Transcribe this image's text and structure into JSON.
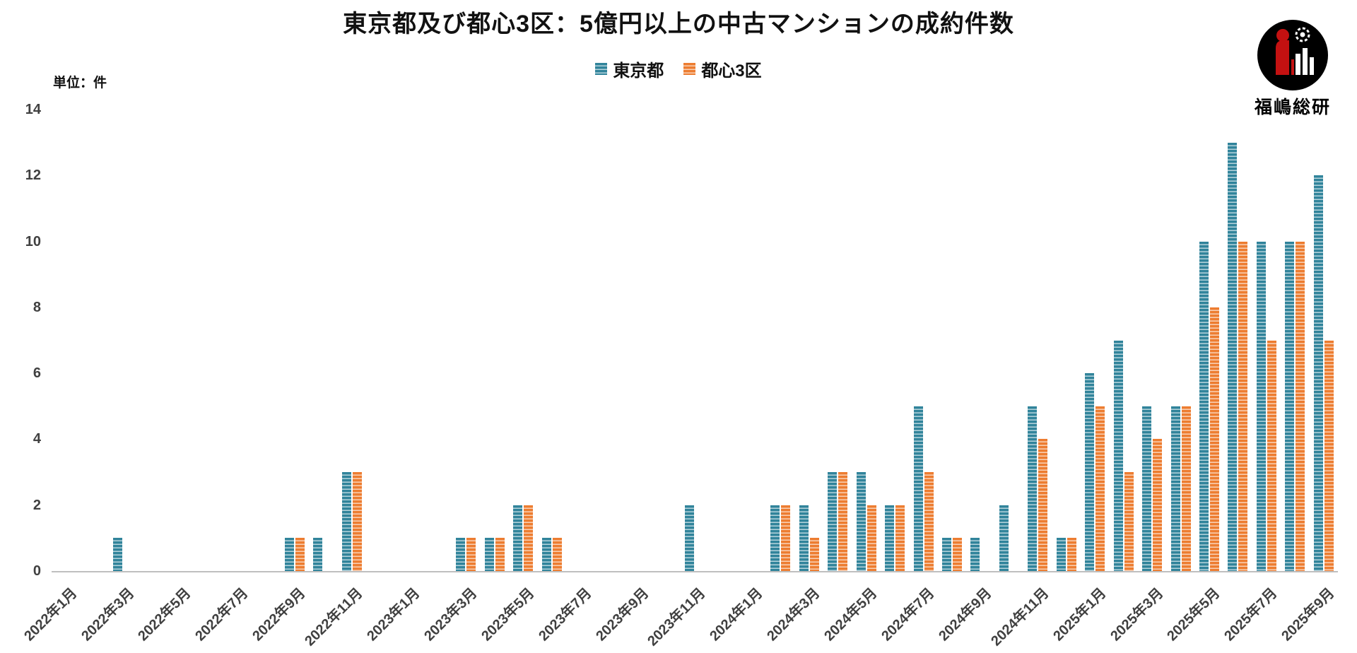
{
  "header": {
    "title": "東京都及び都心3区：5億円以上の中古マンションの成約件数",
    "unit_label": "単位：件"
  },
  "legend": {
    "items": [
      {
        "label": "東京都",
        "color": "#31849B"
      },
      {
        "label": "都心3区",
        "color": "#ED7D31"
      }
    ]
  },
  "logo": {
    "name": "福嶋総研"
  },
  "chart_data": {
    "type": "bar",
    "title": "東京都及び都心3区：5億円以上の中古マンションの成約件数",
    "ylabel": "単位：件",
    "ylim": [
      0,
      14
    ],
    "yticks": [
      0,
      2,
      4,
      6,
      8,
      10,
      12,
      14
    ],
    "grid": false,
    "legend_position": "top-center",
    "x_tick_interval": 2,
    "categories": [
      "2022年1月",
      "2022年2月",
      "2022年3月",
      "2022年4月",
      "2022年5月",
      "2022年6月",
      "2022年7月",
      "2022年8月",
      "2022年9月",
      "2022年10月",
      "2022年11月",
      "2022年12月",
      "2023年1月",
      "2023年2月",
      "2023年3月",
      "2023年4月",
      "2023年5月",
      "2023年6月",
      "2023年7月",
      "2023年8月",
      "2023年9月",
      "2023年10月",
      "2023年11月",
      "2023年12月",
      "2024年1月",
      "2024年2月",
      "2024年3月",
      "2024年4月",
      "2024年5月",
      "2024年6月",
      "2024年7月",
      "2024年8月",
      "2024年9月",
      "2024年10月",
      "2024年11月",
      "2024年12月",
      "2025年1月",
      "2025年2月",
      "2025年3月",
      "2025年4月",
      "2025年5月",
      "2025年6月",
      "2025年7月",
      "2025年8月",
      "2025年9月"
    ],
    "series": [
      {
        "name": "東京都",
        "color": "#31849B",
        "values": [
          0,
          0,
          1,
          0,
          0,
          0,
          0,
          0,
          1,
          1,
          3,
          0,
          0,
          0,
          1,
          1,
          2,
          1,
          0,
          0,
          0,
          0,
          2,
          0,
          0,
          2,
          2,
          3,
          3,
          2,
          5,
          1,
          1,
          2,
          5,
          1,
          6,
          7,
          5,
          5,
          10,
          13,
          10,
          10,
          12
        ]
      },
      {
        "name": "都心3区",
        "color": "#ED7D31",
        "values": [
          0,
          0,
          0,
          0,
          0,
          0,
          0,
          0,
          1,
          0,
          3,
          0,
          0,
          0,
          1,
          1,
          2,
          1,
          0,
          0,
          0,
          0,
          0,
          0,
          0,
          2,
          1,
          3,
          2,
          2,
          3,
          1,
          0,
          0,
          4,
          1,
          5,
          3,
          4,
          5,
          8,
          10,
          7,
          10,
          7
        ]
      }
    ]
  }
}
